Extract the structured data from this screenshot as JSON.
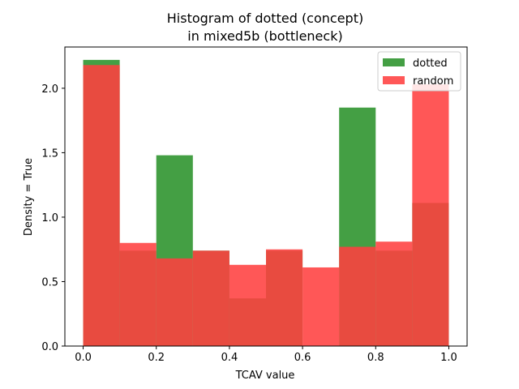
{
  "chart_data": {
    "type": "bar",
    "title": [
      "Histogram of dotted (concept)",
      "in mixed5b (bottleneck)"
    ],
    "xlabel": "TCAV value",
    "ylabel": "Density = True",
    "xlim": [
      -0.05,
      1.05
    ],
    "ylim": [
      0,
      2.32
    ],
    "xticks": [
      0.0,
      0.2,
      0.4,
      0.6,
      0.8,
      1.0
    ],
    "xtick_labels": [
      "0.0",
      "0.2",
      "0.4",
      "0.6",
      "0.8",
      "1.0"
    ],
    "yticks": [
      0.0,
      0.5,
      1.0,
      1.5,
      2.0
    ],
    "ytick_labels": [
      "0.0",
      "0.5",
      "1.0",
      "1.5",
      "2.0"
    ],
    "bin_edges": [
      0.0,
      0.1,
      0.2,
      0.3,
      0.4,
      0.5,
      0.6,
      0.7,
      0.8,
      0.9,
      1.0
    ],
    "grid": false,
    "legend_position": "top-right",
    "series": [
      {
        "name": "dotted",
        "color": "#3a9a3a",
        "values": [
          2.22,
          0.74,
          1.48,
          0.74,
          0.37,
          0.74,
          0.0,
          1.85,
          0.74,
          1.11
        ]
      },
      {
        "name": "random",
        "color": "#ff4040",
        "values": [
          2.18,
          0.8,
          0.68,
          0.74,
          0.63,
          0.75,
          0.61,
          0.77,
          0.81,
          2.03
        ]
      }
    ]
  }
}
